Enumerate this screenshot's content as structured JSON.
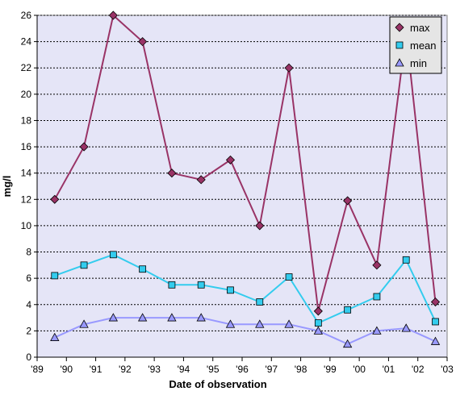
{
  "chart_data": {
    "type": "line",
    "xlabel": "Date of observation",
    "ylabel": "mg/l",
    "xlim": [
      1989,
      2003
    ],
    "ylim": [
      0,
      26
    ],
    "x_ticks": [
      "'89",
      "'90",
      "'91",
      "'92",
      "'93",
      "'94",
      "'95",
      "'96",
      "'97",
      "'98",
      "'99",
      "'00",
      "'01",
      "'02",
      "'03"
    ],
    "y_ticks": [
      0,
      2,
      4,
      6,
      8,
      10,
      12,
      14,
      16,
      18,
      20,
      22,
      24,
      26
    ],
    "grid": "horizontal-dotted",
    "plot_background": "#e5e5f7",
    "legend_position": "top-right",
    "series": [
      {
        "name": "max",
        "color": "#993366",
        "marker": "diamond",
        "x": [
          1989.6,
          1990.6,
          1991.6,
          1992.6,
          1993.6,
          1994.6,
          1995.6,
          1996.6,
          1997.6,
          1998.6,
          1999.6,
          2000.6,
          2001.6,
          2002.6
        ],
        "values": [
          12,
          16,
          26,
          24,
          14,
          13.5,
          15,
          10,
          22,
          3.5,
          11.9,
          7,
          24.7,
          4.2
        ]
      },
      {
        "name": "mean",
        "color": "#33ccee",
        "marker": "square",
        "x": [
          1989.6,
          1990.6,
          1991.6,
          1992.6,
          1993.6,
          1994.6,
          1995.6,
          1996.6,
          1997.6,
          1998.6,
          1999.6,
          2000.6,
          2001.6,
          2002.6
        ],
        "values": [
          6.2,
          7.0,
          7.8,
          6.7,
          5.5,
          5.5,
          5.1,
          4.2,
          6.1,
          2.6,
          3.6,
          4.6,
          7.4,
          2.7
        ]
      },
      {
        "name": "min",
        "color": "#9999ff",
        "marker": "triangle",
        "x": [
          1989.6,
          1990.6,
          1991.6,
          1992.6,
          1993.6,
          1994.6,
          1995.6,
          1996.6,
          1997.6,
          1998.6,
          1999.6,
          2000.6,
          2001.6,
          2002.6
        ],
        "values": [
          1.5,
          2.5,
          3.0,
          3.0,
          3.0,
          3.0,
          2.5,
          2.5,
          2.5,
          2.0,
          1.0,
          2.0,
          2.2,
          1.2
        ]
      }
    ]
  }
}
